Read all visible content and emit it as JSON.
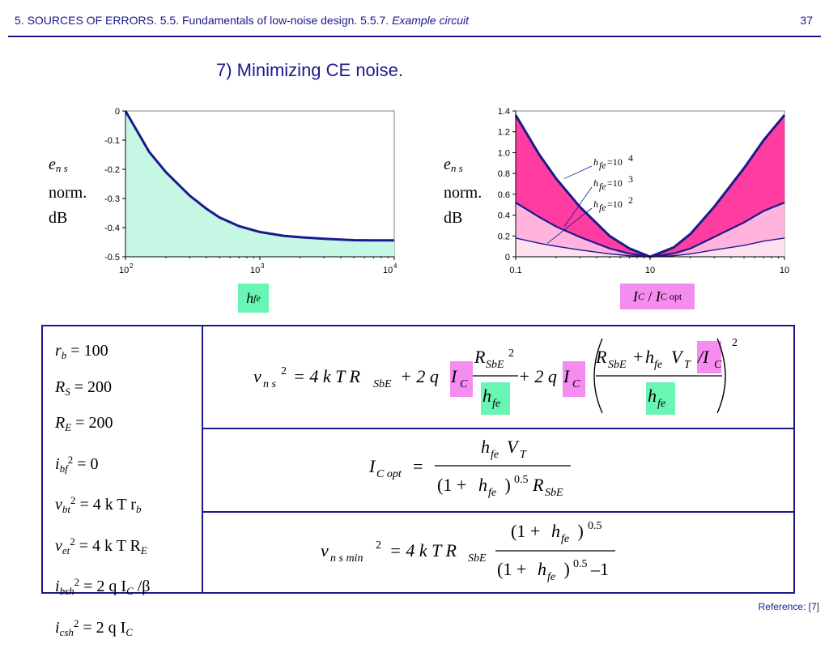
{
  "header": {
    "section": "5. SOURCES OF ERRORS. 5.5. Fundamentals of low-noise design. 5.5.7. ",
    "section_italic": "Example circuit",
    "page_number": "37"
  },
  "slide_title": "7) Minimizing CE noise.",
  "colors": {
    "navy": "#1a1a8c",
    "mint": "#c6f7e4",
    "pink": "#ff3ca0",
    "lightpink": "#ffb3dd",
    "green_box": "#69f5b4",
    "magenta_box": "#f58cf0"
  },
  "left_chart": {
    "ylabel": {
      "sym": "e",
      "sub": "n s",
      "line2": "norm.",
      "line3": "dB"
    },
    "xlabel": {
      "sym": "h",
      "sub": "fe"
    }
  },
  "right_chart": {
    "ylabel": {
      "sym": "e",
      "sub": "n s",
      "line2": "norm.",
      "line3": "dB"
    },
    "xlabel": {
      "sym1": "I",
      "sub1": "C",
      "sep": " / ",
      "sym2": "I",
      "sub2": "C opt"
    },
    "curve_labels": [
      "=10",
      "=10",
      "=10"
    ],
    "curve_label_exps": [
      "4",
      "3",
      "2"
    ]
  },
  "chart_data": [
    {
      "type": "area",
      "xscale": "log",
      "xlim": [
        100,
        10000
      ],
      "ylim": [
        -0.5,
        0
      ],
      "x_ticks": [
        {
          "base": "10",
          "exp": "2"
        },
        {
          "base": "10",
          "exp": "3"
        },
        {
          "base": "10",
          "exp": "4"
        }
      ],
      "y_ticks": [
        "0",
        "-0.1",
        "-0.2",
        "-0.3",
        "-0.4",
        "-0.5"
      ],
      "x": [
        100,
        150,
        200,
        300,
        400,
        500,
        700,
        1000,
        1500,
        2000,
        3000,
        4000,
        5000,
        7000,
        10000
      ],
      "series": [
        {
          "values": [
            0,
            -0.14,
            -0.21,
            -0.29,
            -0.335,
            -0.365,
            -0.395,
            -0.415,
            -0.428,
            -0.433,
            -0.438,
            -0.441,
            -0.443,
            -0.444,
            -0.444
          ]
        }
      ]
    },
    {
      "type": "line",
      "xscale": "log",
      "xlim": [
        0.1,
        10
      ],
      "ylim": [
        0,
        1.4
      ],
      "x_ticks": [
        {
          "base": "0.1"
        },
        {
          "base": "10"
        },
        {
          "base": "10"
        }
      ],
      "y_ticks": [
        "1.4",
        "1.2",
        "1.0",
        "0.8",
        "0.6",
        "0.4",
        "0.2",
        "0"
      ],
      "x": [
        0.1,
        0.15,
        0.2,
        0.3,
        0.5,
        0.7,
        1,
        1.5,
        2,
        3,
        5,
        7,
        10
      ],
      "series": [
        {
          "name": "hfe=10^4",
          "values": [
            1.36,
            0.98,
            0.75,
            0.48,
            0.2,
            0.08,
            0,
            0.09,
            0.22,
            0.48,
            0.85,
            1.12,
            1.36
          ]
        },
        {
          "name": "hfe=10^3",
          "values": [
            0.52,
            0.38,
            0.29,
            0.19,
            0.08,
            0.03,
            0,
            0.03,
            0.08,
            0.19,
            0.33,
            0.44,
            0.52
          ]
        },
        {
          "name": "hfe=10^2",
          "values": [
            0.18,
            0.13,
            0.1,
            0.065,
            0.028,
            0.01,
            0,
            0.01,
            0.028,
            0.065,
            0.11,
            0.15,
            0.18
          ]
        }
      ]
    }
  ],
  "params": [
    {
      "sym": "r",
      "sub": "b",
      "sup": "",
      "rhs": "= 100"
    },
    {
      "sym": "R",
      "sub": "S",
      "sup": "",
      "rhs": "= 200"
    },
    {
      "sym": "R",
      "sub": "E",
      "sup": "",
      "rhs": "= 200"
    },
    {
      "sym": "i",
      "sub": "bf",
      "sup": "2",
      "rhs": "= 0"
    },
    {
      "sym": "v",
      "sub": "bt",
      "sup": "2",
      "rhs": "= 4 k T r",
      "rhs_sub": "b"
    },
    {
      "sym": "v",
      "sub": "et",
      "sup": "2",
      "rhs": "= 4 k T R",
      "rhs_sub": "E"
    },
    {
      "sym": "i",
      "sub": "bsh",
      "sup": "2",
      "rhs": "= 2 q I",
      "rhs_sub": "C",
      "rhs_tail": " /β"
    },
    {
      "sym": "i",
      "sub": "csh",
      "sup": "2",
      "rhs": "= 2 q I",
      "rhs_sub": "C"
    }
  ],
  "eq1": {
    "lhs": "v",
    "lhs_sub": "n s",
    "lhs_sup": "2",
    "t1": "= 4 k T R",
    "t1_sub": "SbE",
    "t2": "+ 2 q",
    "ic": "I",
    "ic_sub": "C",
    "frac1_num": "R",
    "frac1_num_sub": "SbE",
    "frac1_num_sup": "2",
    "frac1_den": "h",
    "frac1_den_sub": "fe",
    "t3": "+ 2 q",
    "frac2_num_a": "R",
    "frac2_num_a_sub": "SbE",
    "frac2_num_plus": "+",
    "frac2_num_b": "h",
    "frac2_num_b_sub": "fe",
    "frac2_num_c": "V",
    "frac2_num_c_sub": "T",
    "frac2_num_d": "/I",
    "frac2_num_d_sub": "C",
    "frac2_den": "h",
    "frac2_den_sub": "fe",
    "outer_sup": "2"
  },
  "eq2": {
    "lhs": "I",
    "lhs_sub": "C opt",
    "eq": "=",
    "num": "h",
    "num_sub": "fe",
    "num_b": "V",
    "num_b_sub": "T",
    "den_a": "(1 + ",
    "den_b": "h",
    "den_b_sub": "fe",
    "den_c": " )",
    "den_sup": "0.5",
    "den_d": "R",
    "den_d_sub": "SbE"
  },
  "eq3": {
    "lhs": "v",
    "lhs_sub": "n s min",
    "lhs_sup": "2",
    "t1": "= 4 k T R",
    "t1_sub": "SbE",
    "num_a": "(1 + ",
    "num_b": "h",
    "num_b_sub": "fe",
    "num_c": " )",
    "num_sup": "0.5",
    "den_a": "(1 + ",
    "den_b": "h",
    "den_b_sub": "fe",
    "den_c": " )",
    "den_sup": "0.5",
    "den_d": "–1"
  },
  "reference": "Reference: [7]"
}
